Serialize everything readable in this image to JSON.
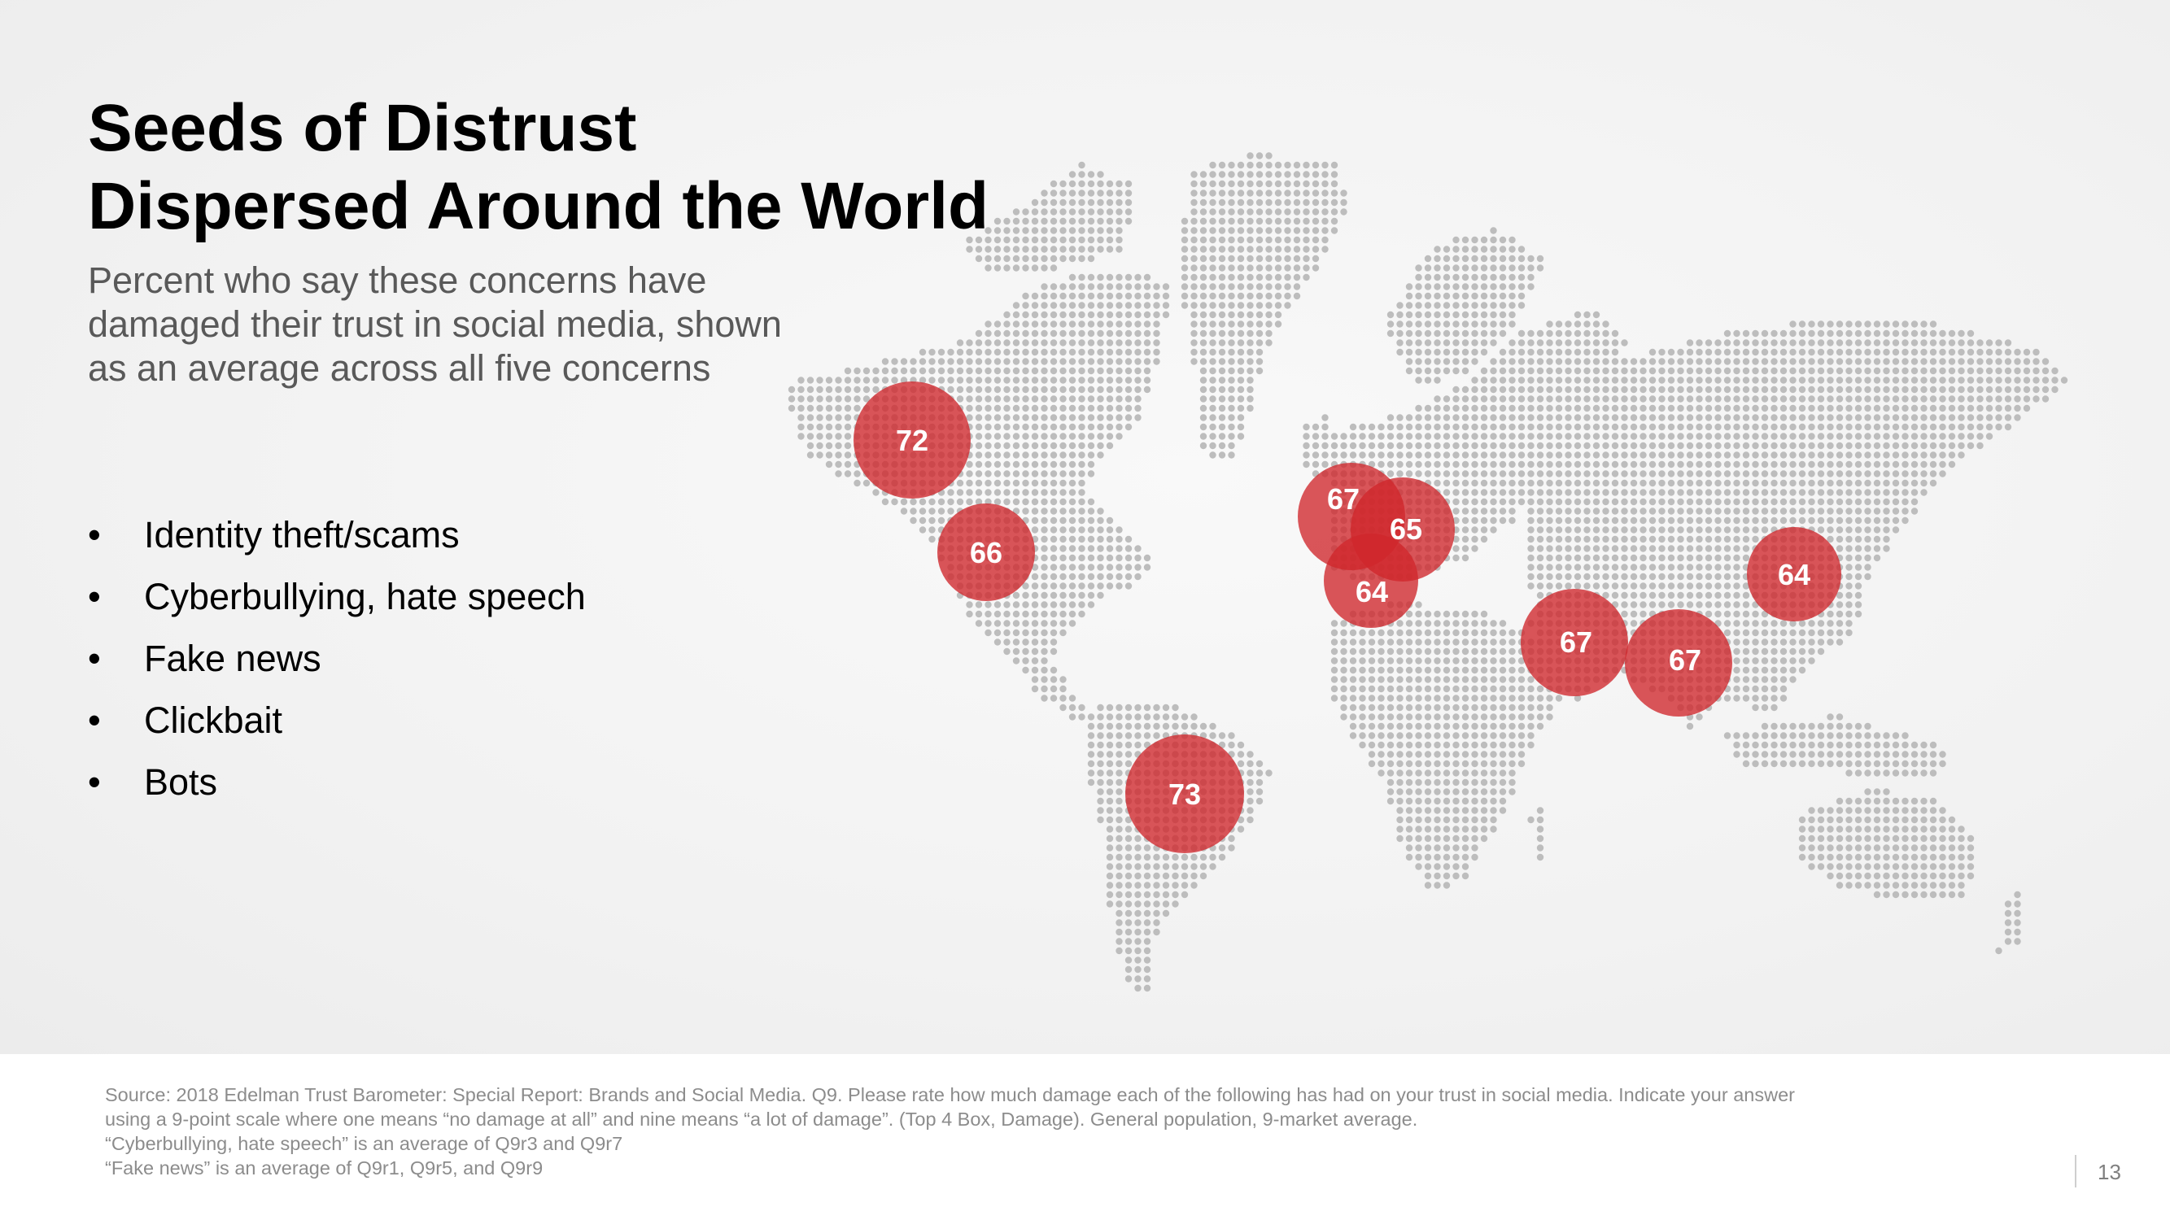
{
  "title": {
    "line1": "Seeds of Distrust",
    "line2": "Dispersed Around the World"
  },
  "subtitle": {
    "line1": "Percent who say these concerns have",
    "line2": "damaged their trust in social media, shown",
    "line3": "as an average across all five concerns"
  },
  "concerns": [
    "Identity theft/scams",
    "Cyberbullying, hate speech",
    "Fake news",
    "Clickbait",
    "Bots"
  ],
  "markers": [
    {
      "region": "Canada",
      "value": 72
    },
    {
      "region": "United States",
      "value": 66
    },
    {
      "region": "Brazil",
      "value": 73
    },
    {
      "region": "United Kingdom",
      "value": 67
    },
    {
      "region": "Germany",
      "value": 65
    },
    {
      "region": "France",
      "value": 64
    },
    {
      "region": "United Arab Emirates",
      "value": 67
    },
    {
      "region": "India",
      "value": 67
    },
    {
      "region": "China",
      "value": 64
    }
  ],
  "marker_color": "#d0262b",
  "dot_color": "#bdbdbd",
  "footnote": {
    "line1": "Source: 2018 Edelman Trust Barometer: Special Report: Brands and Social Media. Q9. Please rate how much damage each of the following has had on your trust in social media. Indicate your answer",
    "line2": "using a 9-point scale where one means “no damage at all” and nine means “a lot of damage”. (Top 4 Box, Damage). General population, 9-market average.",
    "line3": "“Cyberbullying, hate speech” is an average of Q9r3 and Q9r7",
    "line4": "“Fake news” is an average of Q9r1, Q9r5, and Q9r9"
  },
  "page_number": "13"
}
